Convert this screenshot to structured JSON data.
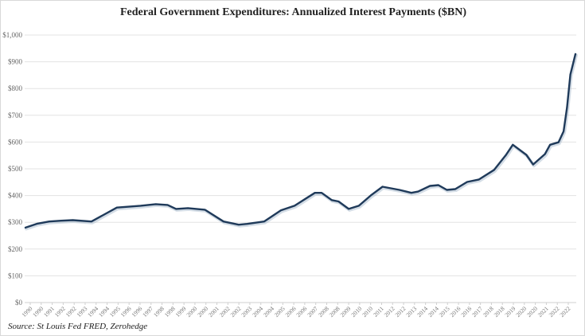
{
  "chart_data": {
    "type": "line",
    "title": "Federal Government Expenditures: Annualized Interest Payments ($BN)",
    "source": "Source: St Louis Fed FRED, Zerohedge",
    "xlabel": "",
    "ylabel": "",
    "ylim": [
      0,
      1000
    ],
    "xlim": [
      1990,
      2022.5
    ],
    "y_ticks": [
      "$0",
      "$100",
      "$200",
      "$300",
      "$400",
      "$500",
      "$600",
      "$700",
      "$800",
      "$900",
      "$1,000"
    ],
    "x_tick_labels": [
      "1990",
      "1990",
      "1991",
      "1992",
      "1992",
      "1993",
      "1994",
      "1994",
      "1995",
      "1996",
      "1996",
      "1997",
      "1998",
      "1998",
      "1999",
      "2000",
      "2000",
      "2001",
      "2002",
      "2002",
      "2003",
      "2004",
      "2004",
      "2005",
      "2006",
      "2006",
      "2007",
      "2008",
      "2008",
      "2009",
      "2010",
      "2010",
      "2011",
      "2012",
      "2012",
      "2013",
      "2014",
      "2014",
      "2015",
      "2016",
      "2016",
      "2017",
      "2018",
      "2018",
      "2019",
      "2020",
      "2020",
      "2021",
      "2022",
      "2022"
    ],
    "grid": true,
    "legend": "none",
    "line_color": "#1f3a5a",
    "series": [
      {
        "x": [
          1990.0,
          1990.7,
          1991.4,
          1992.1,
          1992.8,
          1993.9,
          1995.4,
          1996.8,
          1997.7,
          1998.4,
          1998.9,
          1999.6,
          2000.6,
          2001.7,
          2002.6,
          2003.1,
          2004.1,
          2005.1,
          2005.9,
          2007.1,
          2007.5,
          2008.1,
          2008.5,
          2009.1,
          2009.7,
          2010.4,
          2011.1,
          2012.1,
          2012.8,
          2013.2,
          2013.9,
          2014.4,
          2014.9,
          2015.4,
          2016.1,
          2016.8,
          2017.7,
          2018.4,
          2018.8,
          2019.6,
          2020.0,
          2020.7,
          2021.0,
          2021.5,
          2021.8,
          2022.0,
          2022.2,
          2022.5
        ],
        "y": [
          280,
          295,
          303,
          306,
          308,
          303,
          355,
          362,
          368,
          365,
          350,
          353,
          347,
          303,
          291,
          294,
          303,
          345,
          362,
          410,
          410,
          383,
          378,
          350,
          362,
          400,
          433,
          421,
          410,
          415,
          436,
          439,
          421,
          424,
          451,
          460,
          496,
          552,
          590,
          552,
          516,
          555,
          590,
          599,
          640,
          729,
          852,
          929
        ]
      }
    ]
  }
}
